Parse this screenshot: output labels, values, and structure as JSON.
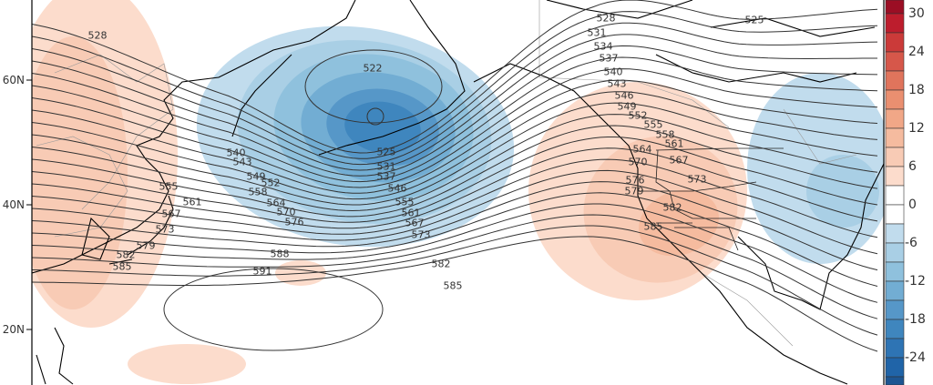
{
  "map": {
    "type": "500mb height (dam) contours with anomaly shading",
    "latitude_labels": [
      "60N",
      "40N",
      "20N"
    ],
    "contour_interval": 3,
    "contour_labels": [
      "528",
      "522",
      "525",
      "531",
      "534",
      "537",
      "540",
      "543",
      "546",
      "549",
      "552",
      "555",
      "558",
      "561",
      "564",
      "567",
      "570",
      "573",
      "576",
      "579",
      "582",
      "585",
      "588",
      "591"
    ],
    "colors": {
      "coastline": "#000000",
      "contour": "#333333",
      "borders": "#999999"
    }
  },
  "colorbar": {
    "ticks": [
      "30",
      "24",
      "18",
      "12",
      "6",
      "0",
      "-6",
      "-12",
      "-18",
      "-24"
    ],
    "bins": [
      {
        "range": "30 to 33",
        "color": "#9b0e24"
      },
      {
        "range": "27 to 30",
        "color": "#bd1d2d"
      },
      {
        "range": "24 to 27",
        "color": "#cb3a39"
      },
      {
        "range": "21 to 24",
        "color": "#d6574a"
      },
      {
        "range": "18 to 21",
        "color": "#e0745c"
      },
      {
        "range": "15 to 18",
        "color": "#ea8f70"
      },
      {
        "range": "12 to 15",
        "color": "#f1a787"
      },
      {
        "range": "9 to 12",
        "color": "#f5bb9f"
      },
      {
        "range": "6 to 9",
        "color": "#f8cbb5"
      },
      {
        "range": "3 to 6",
        "color": "#fcdccc"
      },
      {
        "range": "0 to 3",
        "color": "#ffffff"
      },
      {
        "range": "-3 to 0",
        "color": "#ffffff"
      },
      {
        "range": "-6 to -3",
        "color": "#c1dced"
      },
      {
        "range": "-9 to -6",
        "color": "#a9cfe5"
      },
      {
        "range": "-12 to -9",
        "color": "#8fc1dd"
      },
      {
        "range": "-15 to -12",
        "color": "#72add3"
      },
      {
        "range": "-18 to -15",
        "color": "#5697c8"
      },
      {
        "range": "-21 to -18",
        "color": "#3f86be"
      },
      {
        "range": "-24 to -21",
        "color": "#2e74b4"
      },
      {
        "range": "-27 to -24",
        "color": "#2064a8"
      },
      {
        "range": "< -27",
        "color": "#1d5592"
      }
    ]
  }
}
